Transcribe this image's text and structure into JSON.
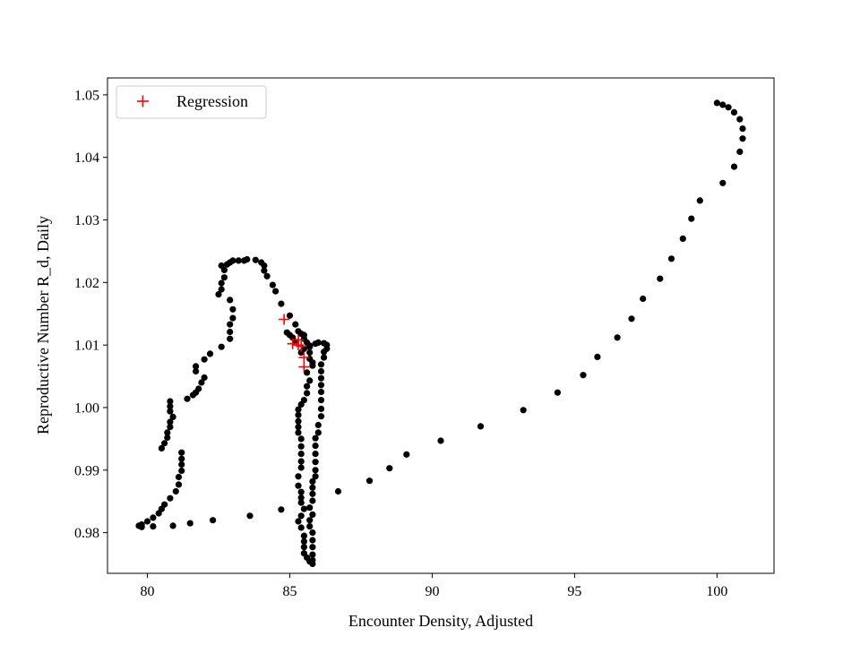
{
  "chart_data": {
    "type": "scatter",
    "title": "",
    "xlabel": "Encounter Density, Adjusted",
    "ylabel": "Reproductive Number R_d, Daily",
    "xlim": [
      78.6,
      102.0
    ],
    "ylim": [
      0.9735,
      1.0527
    ],
    "x_ticks": [
      80,
      85,
      90,
      95,
      100
    ],
    "x_tick_labels": [
      "80",
      "85",
      "90",
      "95",
      "100"
    ],
    "y_ticks": [
      0.98,
      0.99,
      1.0,
      1.01,
      1.02,
      1.03,
      1.04,
      1.05
    ],
    "y_tick_labels": [
      "0.98",
      "0.99",
      "1.00",
      "1.01",
      "1.02",
      "1.03",
      "1.04",
      "1.05"
    ],
    "grid": false,
    "legend": {
      "location": "upper left",
      "entries": [
        "Regression"
      ]
    },
    "colors": {
      "observed": "#000000",
      "regression": "#ff0000"
    },
    "series": [
      {
        "marker": "circle",
        "color": "#000000",
        "points": [
          [
            100.0,
            1.0487
          ],
          [
            100.2,
            1.0484
          ],
          [
            100.4,
            1.048
          ],
          [
            100.6,
            1.0472
          ],
          [
            100.8,
            1.0461
          ],
          [
            100.9,
            1.0446
          ],
          [
            100.9,
            1.043
          ],
          [
            100.8,
            1.0409
          ],
          [
            100.6,
            1.0385
          ],
          [
            100.2,
            1.0359
          ],
          [
            99.4,
            1.0331
          ],
          [
            99.1,
            1.0302
          ],
          [
            98.8,
            1.027
          ],
          [
            98.4,
            1.0238
          ],
          [
            98.0,
            1.0206
          ],
          [
            97.4,
            1.0174
          ],
          [
            97.0,
            1.0142
          ],
          [
            96.5,
            1.0112
          ],
          [
            95.8,
            1.0081
          ],
          [
            95.3,
            1.0052
          ],
          [
            94.4,
            1.0024
          ],
          [
            93.2,
            0.9996
          ],
          [
            91.7,
            0.997
          ],
          [
            90.3,
            0.9947
          ],
          [
            89.1,
            0.9925
          ],
          [
            88.5,
            0.9903
          ],
          [
            87.8,
            0.9883
          ],
          [
            86.7,
            0.9866
          ],
          [
            84.7,
            0.9837
          ],
          [
            83.6,
            0.9827
          ],
          [
            82.3,
            0.982
          ],
          [
            81.5,
            0.9815
          ],
          [
            80.9,
            0.9811
          ],
          [
            80.2,
            0.981
          ],
          [
            79.8,
            0.9809
          ],
          [
            79.7,
            0.9811
          ],
          [
            79.8,
            0.9813
          ],
          [
            80.0,
            0.9818
          ],
          [
            80.2,
            0.9824
          ],
          [
            80.4,
            0.9831
          ],
          [
            80.5,
            0.9838
          ],
          [
            80.6,
            0.9845
          ],
          [
            80.8,
            0.9855
          ],
          [
            81.0,
            0.9866
          ],
          [
            81.1,
            0.9877
          ],
          [
            81.1,
            0.9889
          ],
          [
            81.2,
            0.9899
          ],
          [
            81.2,
            0.9909
          ],
          [
            81.2,
            0.9918
          ],
          [
            81.2,
            0.9928
          ],
          [
            80.5,
            0.9935
          ],
          [
            80.6,
            0.9943
          ],
          [
            80.7,
            0.9952
          ],
          [
            80.7,
            0.996
          ],
          [
            80.8,
            0.9969
          ],
          [
            80.8,
            0.9977
          ],
          [
            80.9,
            0.9985
          ],
          [
            80.8,
            0.9994
          ],
          [
            80.8,
            1.0002
          ],
          [
            80.8,
            1.001
          ],
          [
            81.4,
            1.0014
          ],
          [
            81.6,
            1.002
          ],
          [
            81.7,
            1.0024
          ],
          [
            81.8,
            1.003
          ],
          [
            81.9,
            1.004
          ],
          [
            82.0,
            1.0048
          ],
          [
            81.7,
            1.0058
          ],
          [
            81.7,
            1.0066
          ],
          [
            82.0,
            1.0077
          ],
          [
            82.2,
            1.0086
          ],
          [
            82.6,
            1.0097
          ],
          [
            82.9,
            1.011
          ],
          [
            82.9,
            1.0121
          ],
          [
            82.9,
            1.0133
          ],
          [
            83.0,
            1.0143
          ],
          [
            83.0,
            1.0157
          ],
          [
            82.9,
            1.0172
          ],
          [
            82.5,
            1.0181
          ],
          [
            82.6,
            1.0189
          ],
          [
            82.6,
            1.0199
          ],
          [
            82.7,
            1.0208
          ],
          [
            82.7,
            1.022
          ],
          [
            82.6,
            1.0227
          ],
          [
            82.8,
            1.0229
          ],
          [
            82.9,
            1.0232
          ],
          [
            83.0,
            1.0235
          ],
          [
            83.2,
            1.0235
          ],
          [
            83.4,
            1.0235
          ],
          [
            83.5,
            1.0237
          ],
          [
            83.8,
            1.0236
          ],
          [
            84.0,
            1.0232
          ],
          [
            84.1,
            1.0227
          ],
          [
            84.1,
            1.0219
          ],
          [
            84.2,
            1.021
          ],
          [
            84.4,
            1.0196
          ],
          [
            84.5,
            1.0186
          ],
          [
            84.7,
            1.0166
          ],
          [
            85.0,
            1.0147
          ],
          [
            85.2,
            1.0133
          ],
          [
            85.3,
            1.0122
          ],
          [
            85.4,
            1.0118
          ],
          [
            85.5,
            1.0116
          ],
          [
            85.5,
            1.011
          ],
          [
            85.6,
            1.0104
          ],
          [
            85.7,
            1.0097
          ],
          [
            85.7,
            1.0088
          ],
          [
            85.7,
            1.0078
          ],
          [
            85.8,
            1.0072
          ],
          [
            85.8,
            1.0067
          ],
          [
            85.6,
            1.0056
          ],
          [
            85.7,
            1.0043
          ],
          [
            85.6,
            1.0034
          ],
          [
            85.6,
            1.0023
          ],
          [
            85.5,
            1.0012
          ],
          [
            85.4,
            1.0005
          ],
          [
            85.3,
            0.9997
          ],
          [
            85.3,
            0.9988
          ],
          [
            85.3,
            0.9978
          ],
          [
            85.3,
            0.9969
          ],
          [
            85.3,
            0.996
          ],
          [
            85.4,
            0.995
          ],
          [
            85.4,
            0.9938
          ],
          [
            85.4,
            0.9926
          ],
          [
            85.4,
            0.9914
          ],
          [
            85.4,
            0.9904
          ],
          [
            85.3,
            0.989
          ],
          [
            85.3,
            0.9875
          ],
          [
            85.4,
            0.9865
          ],
          [
            85.4,
            0.9856
          ],
          [
            85.4,
            0.9848
          ],
          [
            85.5,
            0.9838
          ],
          [
            85.4,
            0.9827
          ],
          [
            85.3,
            0.9818
          ],
          [
            85.4,
            0.9808
          ],
          [
            85.5,
            0.9795
          ],
          [
            85.5,
            0.9786
          ],
          [
            85.5,
            0.9777
          ],
          [
            85.5,
            0.9767
          ],
          [
            85.6,
            0.976
          ],
          [
            85.7,
            0.9754
          ],
          [
            85.8,
            0.975
          ],
          [
            85.8,
            0.9756
          ],
          [
            85.8,
            0.9765
          ],
          [
            85.8,
            0.9777
          ],
          [
            85.8,
            0.9788
          ],
          [
            85.8,
            0.98
          ],
          [
            85.7,
            0.981
          ],
          [
            85.7,
            0.982
          ],
          [
            85.8,
            0.9829
          ],
          [
            85.7,
            0.984
          ],
          [
            85.8,
            0.9851
          ],
          [
            85.8,
            0.9862
          ],
          [
            85.8,
            0.9872
          ],
          [
            85.8,
            0.9882
          ],
          [
            85.9,
            0.989
          ],
          [
            85.9,
            0.99
          ],
          [
            85.9,
            0.9913
          ],
          [
            85.9,
            0.9926
          ],
          [
            85.9,
            0.9939
          ],
          [
            85.9,
            0.9951
          ],
          [
            86.0,
            0.996
          ],
          [
            86.0,
            0.9972
          ],
          [
            86.1,
            0.9986
          ],
          [
            86.1,
            0.9998
          ],
          [
            86.1,
            1.0012
          ],
          [
            86.1,
            1.0025
          ],
          [
            86.1,
            1.0036
          ],
          [
            86.1,
            1.0047
          ],
          [
            86.1,
            1.0058
          ],
          [
            86.1,
            1.0069
          ],
          [
            86.2,
            1.008
          ],
          [
            86.2,
            1.0089
          ],
          [
            86.3,
            1.0094
          ],
          [
            86.3,
            1.01
          ],
          [
            86.2,
            1.0103
          ],
          [
            86.0,
            1.0104
          ],
          [
            85.9,
            1.0102
          ],
          [
            85.7,
            1.0099
          ],
          [
            85.5,
            1.0094
          ],
          [
            85.4,
            1.0088
          ],
          [
            85.2,
            1.0105
          ],
          [
            85.1,
            1.0112
          ],
          [
            85.0,
            1.0116
          ],
          [
            84.9,
            1.012
          ]
        ]
      },
      {
        "name": "Regression",
        "marker": "plus",
        "color": "#ff0000",
        "points": [
          [
            84.8,
            1.0141
          ],
          [
            85.1,
            1.0102
          ],
          [
            85.3,
            1.01
          ],
          [
            85.3,
            1.0108
          ],
          [
            85.4,
            1.0098
          ],
          [
            85.5,
            1.008
          ],
          [
            85.5,
            1.0065
          ]
        ]
      }
    ]
  }
}
